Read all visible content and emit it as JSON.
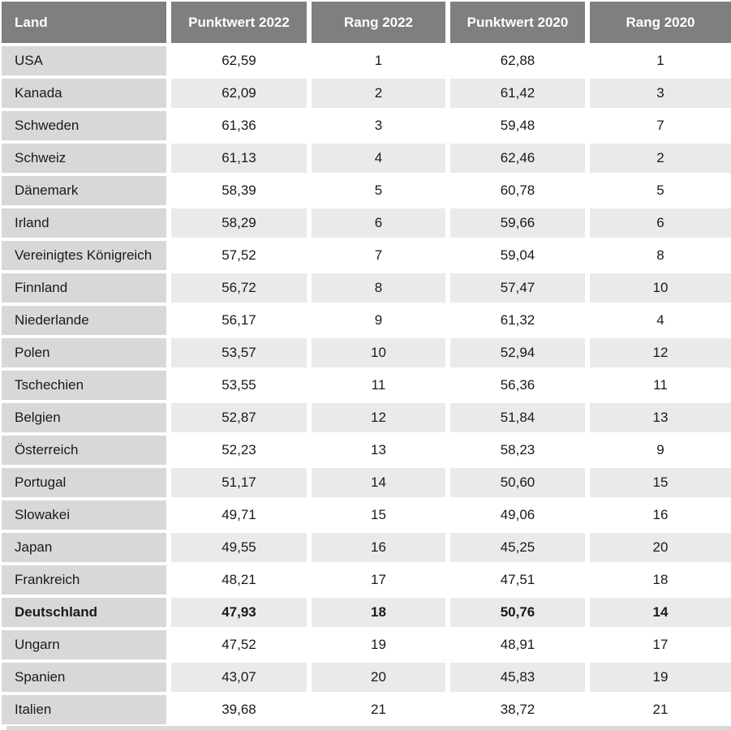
{
  "chart_data": {
    "type": "table",
    "columns": [
      "Land",
      "Punktwert 2022",
      "Rang 2022",
      "Punktwert 2020",
      "Rang 2020"
    ],
    "column_keys": [
      "land",
      "punktwert-2022",
      "rang-2022",
      "punktwert-2020",
      "rang-2020"
    ],
    "rows": [
      [
        "USA",
        "62,59",
        "1",
        "62,88",
        "1"
      ],
      [
        "Kanada",
        "62,09",
        "2",
        "61,42",
        "3"
      ],
      [
        "Schweden",
        "61,36",
        "3",
        "59,48",
        "7"
      ],
      [
        "Schweiz",
        "61,13",
        "4",
        "62,46",
        "2"
      ],
      [
        "Dänemark",
        "58,39",
        "5",
        "60,78",
        "5"
      ],
      [
        "Irland",
        "58,29",
        "6",
        "59,66",
        "6"
      ],
      [
        "Vereinigtes Königreich",
        "57,52",
        "7",
        "59,04",
        "8"
      ],
      [
        "Finnland",
        "56,72",
        "8",
        "57,47",
        "10"
      ],
      [
        "Niederlande",
        "56,17",
        "9",
        "61,32",
        "4"
      ],
      [
        "Polen",
        "53,57",
        "10",
        "52,94",
        "12"
      ],
      [
        "Tschechien",
        "53,55",
        "11",
        "56,36",
        "11"
      ],
      [
        "Belgien",
        "52,87",
        "12",
        "51,84",
        "13"
      ],
      [
        "Österreich",
        "52,23",
        "13",
        "58,23",
        "9"
      ],
      [
        "Portugal",
        "51,17",
        "14",
        "50,60",
        "15"
      ],
      [
        "Slowakei",
        "49,71",
        "15",
        "49,06",
        "16"
      ],
      [
        "Japan",
        "49,55",
        "16",
        "45,25",
        "20"
      ],
      [
        "Frankreich",
        "48,21",
        "17",
        "47,51",
        "18"
      ],
      [
        "Deutschland",
        "47,93",
        "18",
        "50,76",
        "14"
      ],
      [
        "Ungarn",
        "47,52",
        "19",
        "48,91",
        "17"
      ],
      [
        "Spanien",
        "43,07",
        "20",
        "45,83",
        "19"
      ],
      [
        "Italien",
        "39,68",
        "21",
        "38,72",
        "21"
      ]
    ],
    "highlighted_row": "Deutschland",
    "layout": {
      "grid": false,
      "legend": "none"
    }
  },
  "colors": {
    "header_bg": "#7f7f7f",
    "header_text": "#ffffff",
    "land_cell_bg": "#d8d8d8",
    "row_alt_bg": "#eaeaea",
    "row_bg": "#ffffff",
    "text": "#1a1a1a",
    "bottom_strip": "#d9d9d9"
  }
}
